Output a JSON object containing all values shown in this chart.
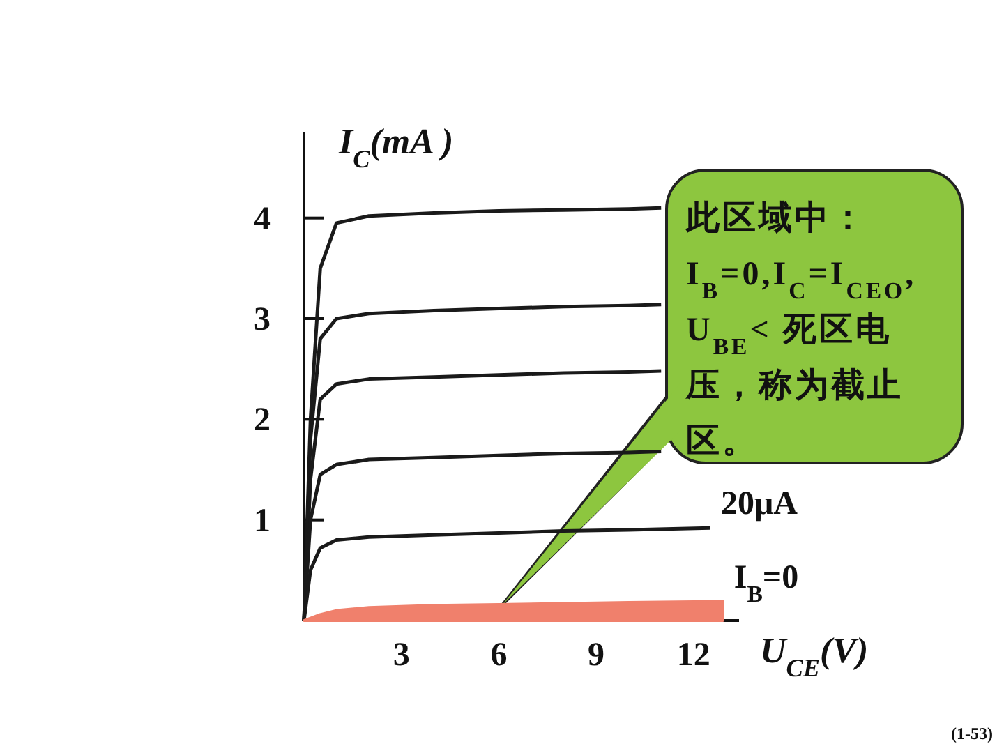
{
  "chart_data": {
    "type": "line",
    "xlabel": "U$_{CE}$(V)",
    "ylabel": "I$_{C}$(mA )",
    "xlim": [
      0,
      13.4
    ],
    "ylim": [
      0,
      4.85
    ],
    "xticks": [
      3,
      6,
      9,
      12
    ],
    "yticks": [
      1,
      2,
      3,
      4
    ],
    "annotations": [
      "此区域中：I$_{B}$=0,I$_{C}$=I$_{CEO}$, U$_{BE}$< 死区电压，称为截止区。",
      "(1-53)"
    ],
    "series": [
      {
        "color": "#1a1a1a",
        "x": [
          0,
          0.2,
          0.5,
          1,
          2,
          4,
          6,
          8,
          10,
          11
        ],
        "values": [
          0,
          2.0,
          3.5,
          3.95,
          4.02,
          4.05,
          4.07,
          4.08,
          4.09,
          4.1
        ]
      },
      {
        "color": "#1a1a1a",
        "x": [
          0,
          0.2,
          0.5,
          1,
          2,
          4,
          6,
          8,
          10,
          11
        ],
        "values": [
          0,
          1.8,
          2.8,
          3.0,
          3.05,
          3.08,
          3.1,
          3.12,
          3.13,
          3.14
        ]
      },
      {
        "color": "#1a1a1a",
        "x": [
          0,
          0.2,
          0.5,
          1,
          2,
          4,
          6,
          8,
          10,
          11
        ],
        "values": [
          0,
          1.4,
          2.2,
          2.35,
          2.4,
          2.42,
          2.44,
          2.46,
          2.47,
          2.48
        ]
      },
      {
        "color": "#1a1a1a",
        "x": [
          0,
          0.2,
          0.5,
          1,
          2,
          4,
          6,
          8,
          10,
          11
        ],
        "values": [
          0,
          1.0,
          1.45,
          1.55,
          1.6,
          1.62,
          1.64,
          1.66,
          1.67,
          1.68
        ]
      },
      {
        "name": "20μA",
        "color": "#1a1a1a",
        "x": [
          0,
          0.2,
          0.5,
          1,
          2,
          4,
          6,
          8,
          10,
          12.5
        ],
        "values": [
          0,
          0.5,
          0.72,
          0.8,
          0.83,
          0.85,
          0.87,
          0.89,
          0.9,
          0.92
        ]
      },
      {
        "name": "I$_{B}$=0",
        "type": "area",
        "color": "#f0806c",
        "x": [
          0,
          0.5,
          1,
          2,
          4,
          6,
          8,
          10,
          12.9
        ],
        "values": [
          0,
          0.06,
          0.1,
          0.13,
          0.15,
          0.16,
          0.17,
          0.18,
          0.19
        ]
      }
    ]
  }
}
